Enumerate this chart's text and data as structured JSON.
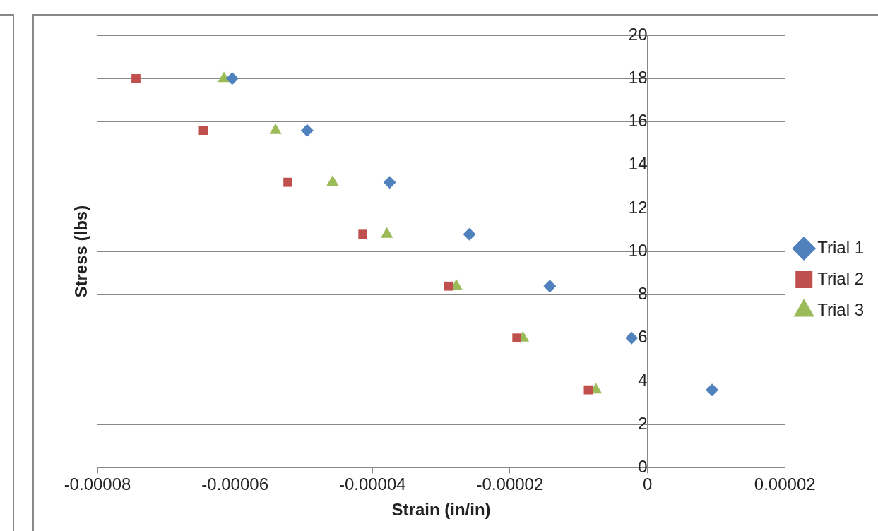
{
  "chart_data": {
    "type": "scatter",
    "xlabel": "Strain (in/in)",
    "ylabel": "Stress (lbs)",
    "xlim": [
      -8e-05,
      2e-05
    ],
    "xticks": [
      {
        "value": -8e-05,
        "label": "-0.00008"
      },
      {
        "value": -6e-05,
        "label": "-0.00006"
      },
      {
        "value": -4e-05,
        "label": "-0.00004"
      },
      {
        "value": -2e-05,
        "label": "-0.00002"
      },
      0,
      {
        "value": 2e-05,
        "label": "0.00002"
      }
    ],
    "ylim": [
      0,
      20
    ],
    "yticks": [
      0,
      2,
      4,
      6,
      8,
      10,
      12,
      14,
      16,
      18,
      20
    ],
    "grid": "y",
    "legend": "right",
    "series": [
      {
        "name": "Trial 1",
        "color": "#4f81bd",
        "marker": "diamond",
        "x": [
          -6.04e-05,
          -4.95e-05,
          -3.75e-05,
          -2.59e-05,
          -1.42e-05,
          -2.3e-06,
          9.4e-06
        ],
        "values": [
          18,
          15.6,
          13.2,
          10.8,
          8.4,
          6,
          3.6
        ]
      },
      {
        "name": "Trial 2",
        "color": "#c0504d",
        "marker": "square",
        "x": [
          -7.44e-05,
          -6.46e-05,
          -5.23e-05,
          -4.14e-05,
          -2.89e-05,
          -1.9e-05,
          -8.6e-06
        ],
        "values": [
          18,
          15.6,
          13.2,
          10.8,
          8.4,
          6,
          3.6
        ]
      },
      {
        "name": "Trial 3",
        "color": "#9bbb59",
        "marker": "triangle",
        "x": [
          -6.16e-05,
          -5.41e-05,
          -4.58e-05,
          -3.79e-05,
          -2.78e-05,
          -1.81e-05,
          -7.5e-06
        ],
        "values": [
          18,
          15.6,
          13.2,
          10.8,
          8.4,
          6,
          3.6
        ]
      }
    ]
  }
}
